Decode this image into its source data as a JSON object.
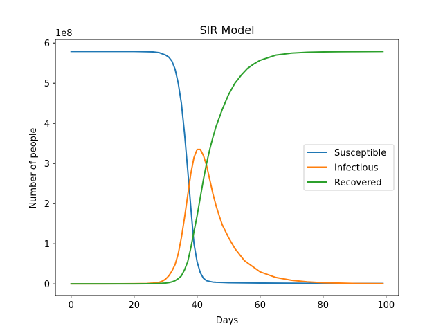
{
  "chart_data": {
    "type": "line",
    "title": "SIR Model",
    "xlabel": "Days",
    "ylabel": "Number of people",
    "y_offset_text": "1e8",
    "xlim": [
      -5,
      104
    ],
    "ylim": [
      -0.29,
      6.09
    ],
    "y_unit_multiplier": 100000000,
    "x_ticks": [
      0,
      20,
      40,
      60,
      80,
      100
    ],
    "x_tick_labels": [
      "0",
      "20",
      "40",
      "60",
      "80",
      "100"
    ],
    "y_ticks": [
      0,
      1,
      2,
      3,
      4,
      5,
      6
    ],
    "y_tick_labels": [
      "0",
      "1",
      "2",
      "3",
      "4",
      "5",
      "6"
    ],
    "legend_position": "center-right",
    "series": [
      {
        "name": "Susceptible",
        "color": "#1f77b4",
        "x": [
          0,
          10,
          20,
          24,
          26,
          28,
          30,
          31,
          32,
          33,
          34,
          35,
          36,
          37,
          38,
          39,
          40,
          41,
          42,
          43,
          44,
          45,
          46,
          48,
          50,
          55,
          60,
          70,
          80,
          90,
          99
        ],
        "y": [
          5.79,
          5.79,
          5.79,
          5.785,
          5.78,
          5.76,
          5.7,
          5.65,
          5.55,
          5.35,
          5.0,
          4.5,
          3.75,
          2.85,
          1.9,
          1.0,
          0.55,
          0.28,
          0.14,
          0.08,
          0.06,
          0.045,
          0.04,
          0.035,
          0.03,
          0.025,
          0.02,
          0.015,
          0.012,
          0.011,
          0.01
        ]
      },
      {
        "name": "Infectious",
        "color": "#ff7f0e",
        "x": [
          0,
          10,
          20,
          24,
          26,
          28,
          29,
          30,
          31,
          32,
          33,
          34,
          35,
          36,
          37,
          38,
          39,
          40,
          41,
          42,
          43,
          44,
          45,
          46,
          47,
          48,
          50,
          52,
          55,
          60,
          65,
          70,
          75,
          80,
          85,
          90,
          99
        ],
        "y": [
          0,
          0,
          0.005,
          0.01,
          0.02,
          0.04,
          0.07,
          0.12,
          0.2,
          0.32,
          0.48,
          0.75,
          1.15,
          1.65,
          2.2,
          2.75,
          3.15,
          3.35,
          3.35,
          3.2,
          2.95,
          2.6,
          2.25,
          1.95,
          1.7,
          1.47,
          1.15,
          0.88,
          0.58,
          0.3,
          0.16,
          0.09,
          0.05,
          0.03,
          0.02,
          0.01,
          0.005
        ]
      },
      {
        "name": "Recovered",
        "color": "#2ca02c",
        "x": [
          0,
          10,
          20,
          24,
          26,
          28,
          30,
          31,
          32,
          33,
          34,
          35,
          36,
          37,
          38,
          39,
          40,
          41,
          42,
          43,
          44,
          45,
          46,
          48,
          50,
          52,
          54,
          56,
          58,
          60,
          65,
          70,
          75,
          80,
          85,
          90,
          99
        ],
        "y": [
          0,
          0,
          0,
          0.003,
          0.005,
          0.01,
          0.02,
          0.03,
          0.05,
          0.08,
          0.13,
          0.2,
          0.35,
          0.55,
          0.9,
          1.3,
          1.7,
          2.15,
          2.6,
          3.0,
          3.35,
          3.65,
          3.92,
          4.35,
          4.72,
          5.0,
          5.2,
          5.37,
          5.48,
          5.57,
          5.7,
          5.75,
          5.77,
          5.78,
          5.785,
          5.787,
          5.79
        ]
      }
    ]
  }
}
